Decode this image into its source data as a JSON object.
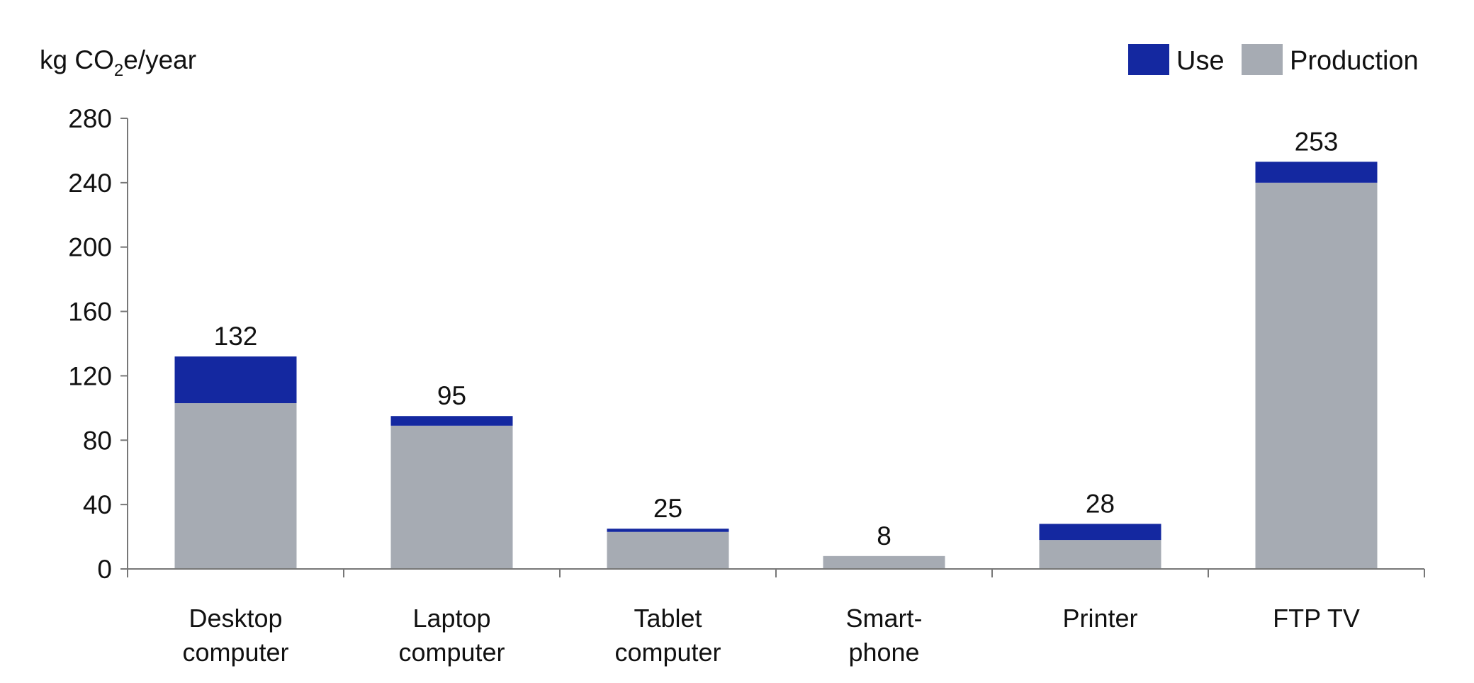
{
  "chart_data": {
    "type": "bar",
    "stacked": true,
    "ylabel_parts": {
      "pre": "kg CO",
      "sub": "2",
      "post": "e/year"
    },
    "categories": [
      [
        "Desktop",
        "computer"
      ],
      [
        "Laptop",
        "computer"
      ],
      [
        "Tablet",
        "computer"
      ],
      [
        "Smart-",
        "phone"
      ],
      [
        "Printer"
      ],
      [
        "FTP TV"
      ]
    ],
    "series": [
      {
        "name": "Production",
        "color": "#a6abb3",
        "values": [
          103,
          89,
          23,
          8,
          18,
          240
        ]
      },
      {
        "name": "Use",
        "color": "#1428a0",
        "values": [
          29,
          6,
          2,
          0,
          10,
          13
        ]
      }
    ],
    "totals": [
      "132",
      "95",
      "25",
      "8",
      "28",
      "253"
    ],
    "ylim": [
      0,
      280
    ],
    "yticks": [
      0,
      40,
      80,
      120,
      160,
      200,
      240,
      280
    ],
    "legend": [
      {
        "label": "Use",
        "color": "#1428a0"
      },
      {
        "label": "Production",
        "color": "#a6abb3"
      }
    ],
    "legend_position": "top-right",
    "grid": false
  }
}
